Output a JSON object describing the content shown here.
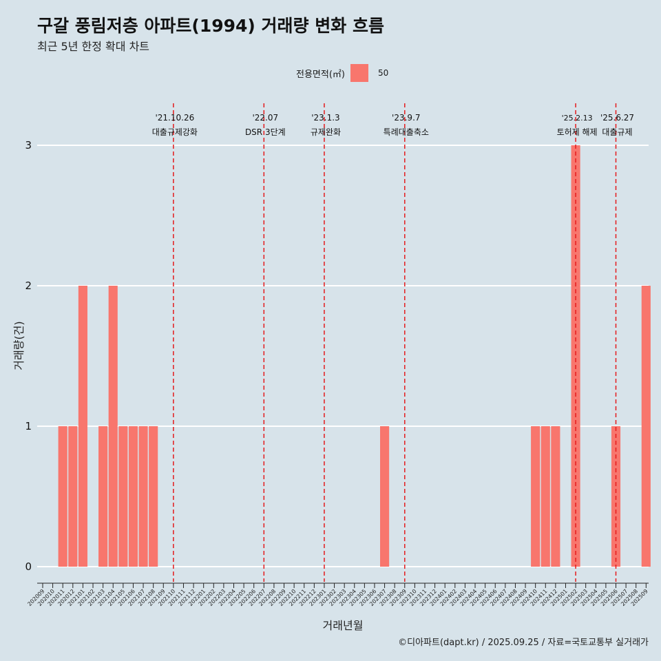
{
  "header": {
    "title": "구갈 풍림저층 아파트(1994) 거래량 변화 흐름",
    "subtitle": "최근 5년 한정 확대 차트"
  },
  "legend": {
    "title": "전용면적(㎡)",
    "entries": [
      {
        "label": "50",
        "color": "#f8766d"
      }
    ]
  },
  "caption": "©디아파트(dapt.kr) / 2025.09.25 / 자료=국토교통부 실거래가",
  "chart_data": {
    "type": "bar",
    "title": "구갈 풍림저층 아파트(1994) 거래량 변화 흐름",
    "subtitle": "최근 5년 한정 확대 차트",
    "xlabel": "거래년월",
    "ylabel": "거래량(건)",
    "ylim": [
      0,
      3
    ],
    "yticks": [
      0,
      1,
      2,
      3
    ],
    "grid": "horizontal",
    "legend_position": "top",
    "bar_color": "#f8766d",
    "categories": [
      "202009",
      "202010",
      "202011",
      "202012",
      "202101",
      "202102",
      "202103",
      "202104",
      "202105",
      "202106",
      "202107",
      "202108",
      "202109",
      "202110",
      "202111",
      "202112",
      "202201",
      "202202",
      "202203",
      "202204",
      "202205",
      "202206",
      "202207",
      "202208",
      "202209",
      "202210",
      "202211",
      "202212",
      "202301",
      "202302",
      "202303",
      "202304",
      "202305",
      "202306",
      "202307",
      "202308",
      "202309",
      "202310",
      "202311",
      "202312",
      "202401",
      "202402",
      "202403",
      "202404",
      "202405",
      "202406",
      "202407",
      "202408",
      "202409",
      "202410",
      "202411",
      "202412",
      "202501",
      "202502",
      "202503",
      "202504",
      "202505",
      "202506",
      "202507",
      "202508",
      "202509"
    ],
    "series": [
      {
        "name": "50",
        "values": [
          0,
          0,
          1,
          1,
          2,
          0,
          1,
          2,
          1,
          1,
          1,
          1,
          0,
          0,
          0,
          0,
          0,
          0,
          0,
          0,
          0,
          0,
          0,
          0,
          0,
          0,
          0,
          0,
          0,
          0,
          0,
          0,
          0,
          0,
          1,
          0,
          0,
          0,
          0,
          0,
          0,
          0,
          0,
          0,
          0,
          0,
          0,
          0,
          0,
          1,
          1,
          1,
          0,
          3,
          0,
          0,
          0,
          1,
          0,
          0,
          2
        ]
      }
    ],
    "annotations": [
      {
        "date": "'21.10.26",
        "label": "대출규제강화",
        "month": "202110"
      },
      {
        "date": "'22.07",
        "label": "DSR 3단계",
        "month": "202207"
      },
      {
        "date": "'23.1.3",
        "label": "규제완화",
        "month": "202301"
      },
      {
        "date": "'23.9.7",
        "label": "특례대출축소",
        "month": "202309"
      },
      {
        "date": "'25.2.13",
        "label": "토허제 해제",
        "month": "202502"
      },
      {
        "date": "'25.6.27",
        "label": "대출규제",
        "month": "202506"
      }
    ],
    "annotation_line_color": "#e41a1c"
  }
}
